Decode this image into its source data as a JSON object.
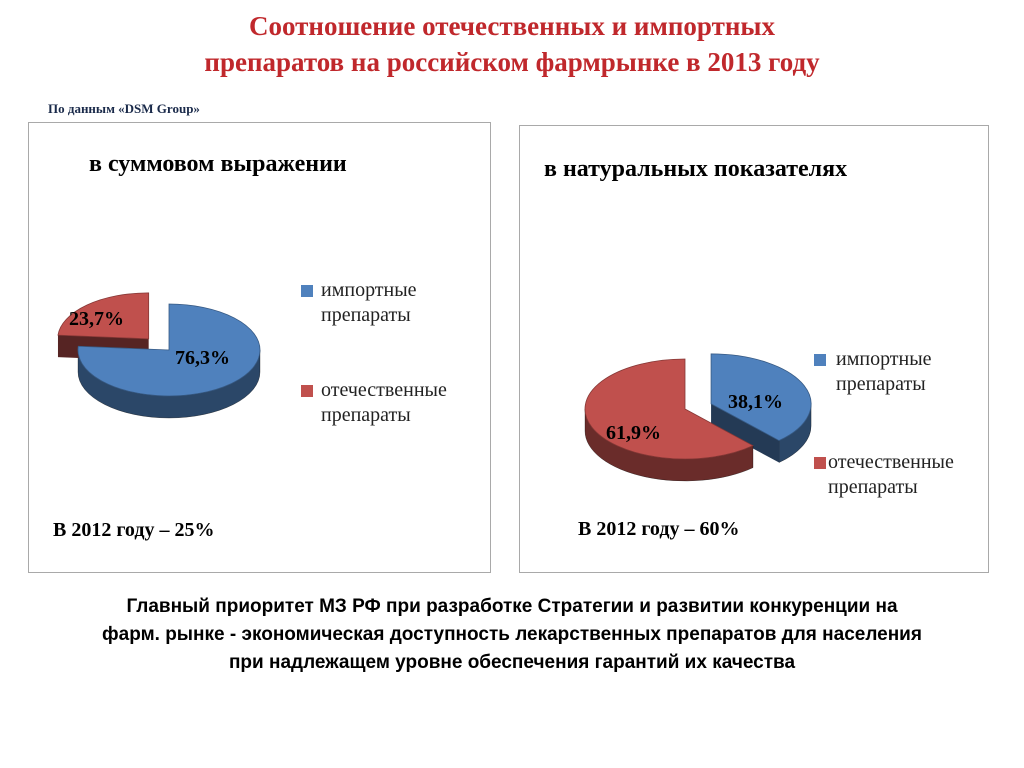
{
  "title_line1": "Соотношение отечественных и импортных",
  "title_line2": "препаратов на российском фармрынке в 2013 году",
  "source": "По данным «DSM Group»",
  "colors": {
    "import": "#4f81bd",
    "domestic": "#c0504d",
    "title": "#c0282c"
  },
  "chart_data": [
    {
      "type": "pie",
      "title": "в суммовом выражении",
      "slices": [
        {
          "name": "импортные препараты",
          "value": 76.3,
          "label": "76,3%"
        },
        {
          "name": "отечественные препараты",
          "value": 23.7,
          "label": "23,7%"
        }
      ],
      "legend": [
        "импортные препараты",
        "отечественные препараты"
      ],
      "legend_position": "right",
      "note": "В 2012 году – 25%",
      "style": "3d, domestic slice exploded"
    },
    {
      "type": "pie",
      "title": "в натуральных показателях",
      "slices": [
        {
          "name": "импортные препараты",
          "value": 38.1,
          "label": "38,1%"
        },
        {
          "name": "отечественные препараты",
          "value": 61.9,
          "label": "61,9%"
        }
      ],
      "legend": [
        "импортные препараты",
        "отечественные препараты"
      ],
      "legend_position": "right",
      "note": "В 2012 году – 60%",
      "style": "3d, import slice exploded"
    }
  ],
  "conclusion": {
    "line1": "Главный приоритет МЗ РФ при разработке Стратегии и развитии конкуренции на",
    "line2": "фарм. рынке - экономическая доступность лекарственных препаратов для населения",
    "line3": "при надлежащем уровне обеспечения гарантий их качества"
  }
}
